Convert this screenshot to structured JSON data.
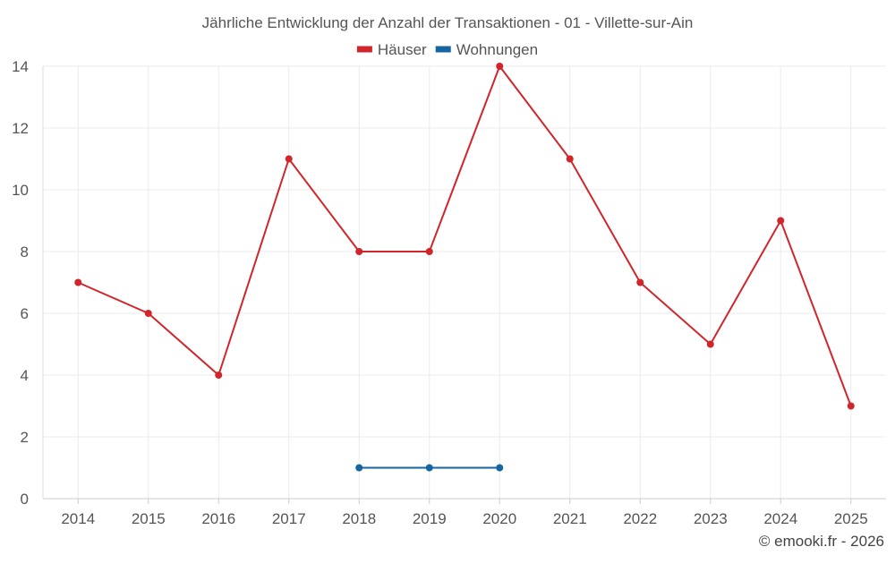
{
  "chart_data": {
    "type": "line",
    "title": "Jährliche Entwicklung der Anzahl der Transaktionen - 01 - Villette-sur-Ain",
    "xlabel": "",
    "ylabel": "",
    "categories": [
      "2014",
      "2015",
      "2016",
      "2017",
      "2018",
      "2019",
      "2020",
      "2021",
      "2022",
      "2023",
      "2024",
      "2025"
    ],
    "ylim": [
      0,
      14
    ],
    "yticks": [
      0,
      2,
      4,
      6,
      8,
      10,
      12,
      14
    ],
    "grid": true,
    "legend_position": "top-center",
    "series": [
      {
        "name": "Häuser",
        "color": "#d0262b",
        "values": [
          7,
          6,
          4,
          11,
          8,
          8,
          14,
          11,
          7,
          5,
          9,
          3
        ]
      },
      {
        "name": "Wohnungen",
        "color": "#1565a0",
        "values": [
          null,
          null,
          null,
          null,
          1,
          1,
          1,
          null,
          null,
          null,
          null,
          null
        ]
      }
    ]
  },
  "credit": "© emooki.fr - 2026"
}
